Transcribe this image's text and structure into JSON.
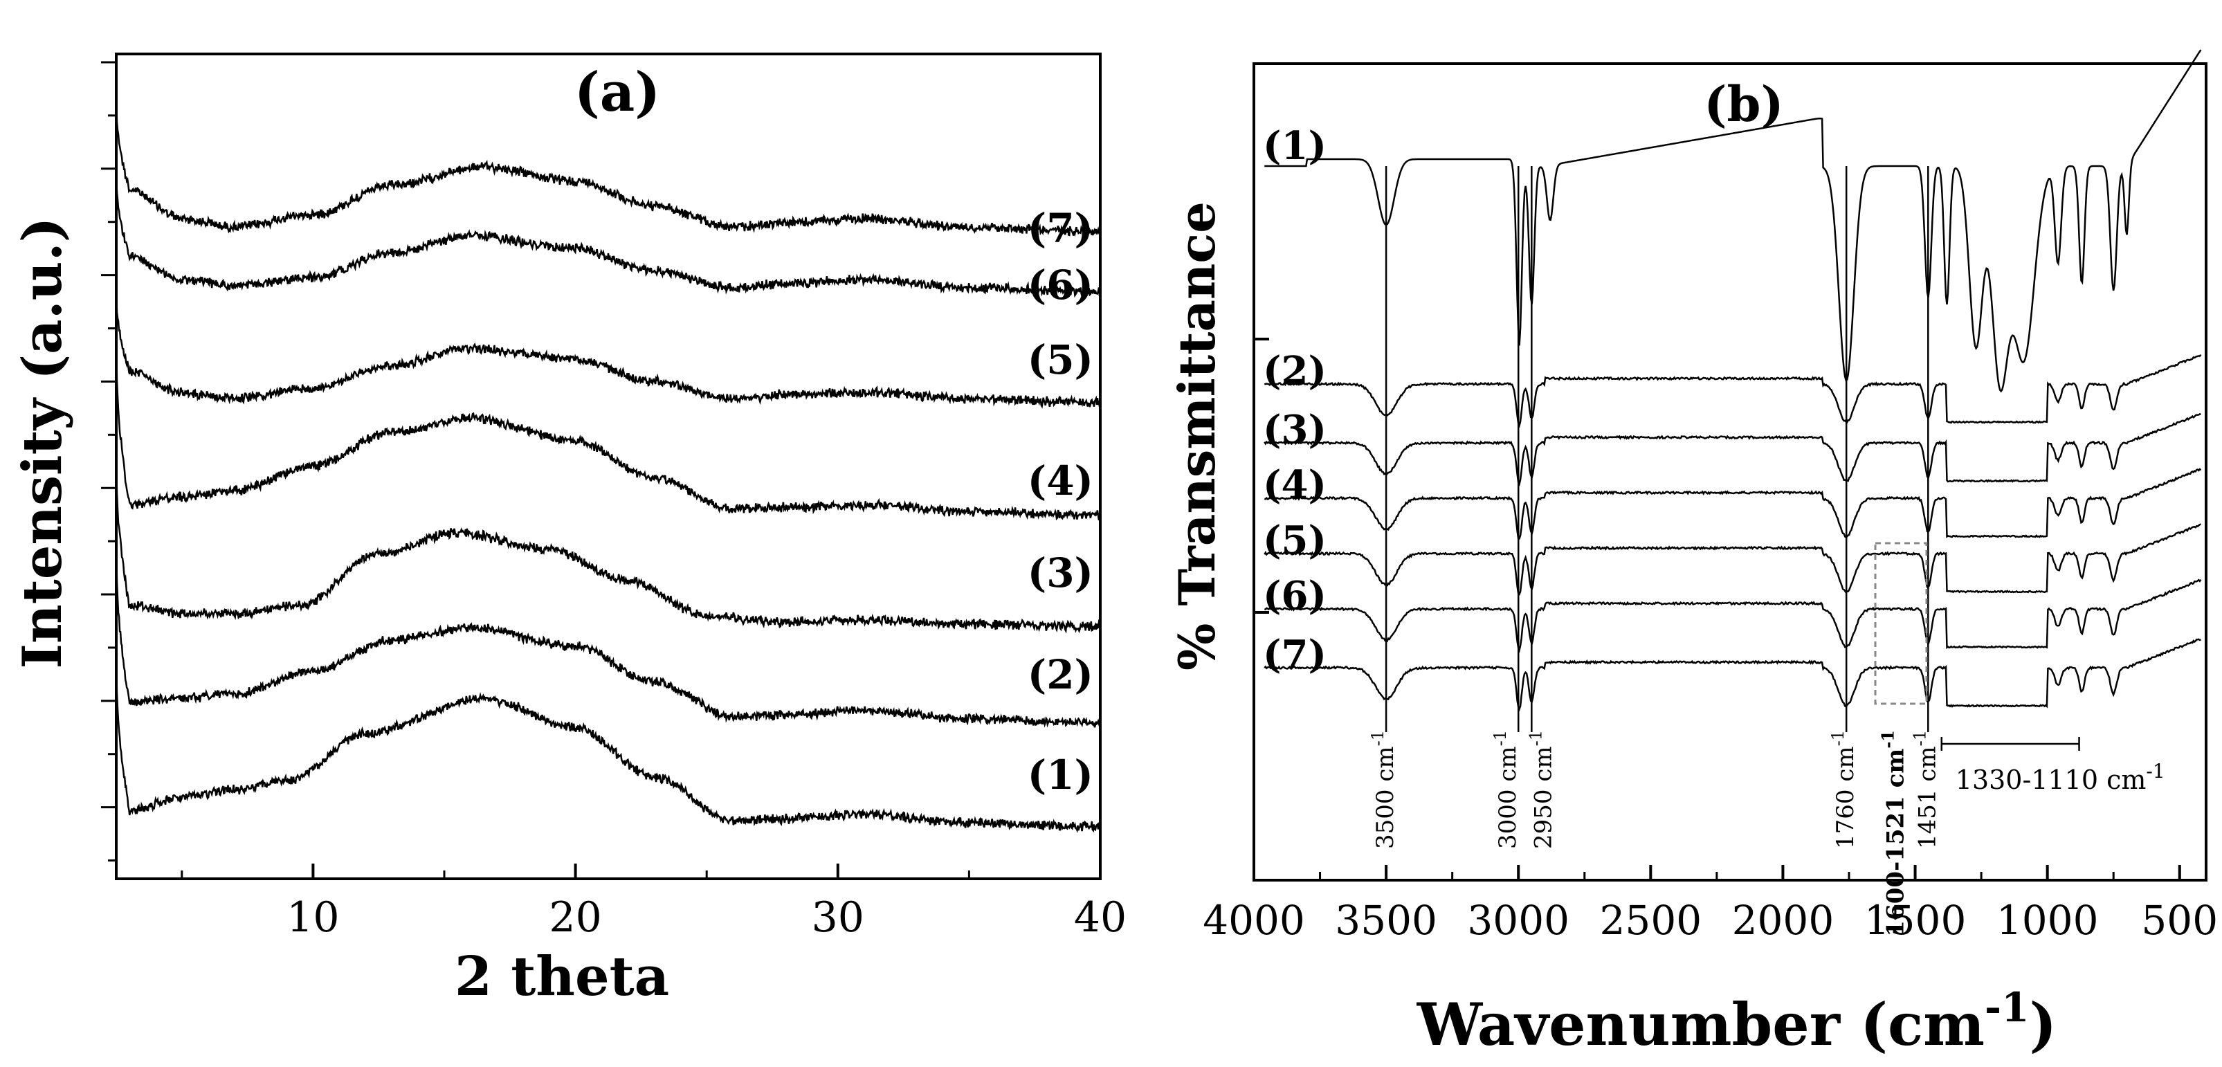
{
  "chart_data": [
    {
      "type": "line",
      "panel_label": "(a)",
      "title": "",
      "xlabel": "2 theta",
      "ylabel": "Intensity (a.u.)",
      "xlim": [
        2.5,
        40
      ],
      "xticks": [
        10,
        20,
        30,
        40
      ],
      "grid": false,
      "series": [
        {
          "name": "(7)",
          "label": "(7)",
          "points": [
            [
              2.5,
              0.66
            ],
            [
              3,
              0.22
            ],
            [
              5,
              0.08
            ],
            [
              7,
              0.04
            ],
            [
              10,
              0.1
            ],
            [
              13,
              0.24
            ],
            [
              16.5,
              0.33
            ],
            [
              20,
              0.26
            ],
            [
              23,
              0.14
            ],
            [
              26,
              0.04
            ],
            [
              28,
              0.06
            ],
            [
              31,
              0.08
            ],
            [
              35,
              0.04
            ],
            [
              40,
              0.02
            ]
          ]
        },
        {
          "name": "(6)",
          "label": "(6)",
          "points": [
            [
              2.5,
              0.58
            ],
            [
              3,
              0.18
            ],
            [
              5,
              0.07
            ],
            [
              7,
              0.04
            ],
            [
              10,
              0.08
            ],
            [
              13,
              0.2
            ],
            [
              16,
              0.28
            ],
            [
              20,
              0.22
            ],
            [
              23,
              0.11
            ],
            [
              26,
              0.03
            ],
            [
              28,
              0.05
            ],
            [
              31,
              0.07
            ],
            [
              35,
              0.03
            ],
            [
              40,
              0.01
            ]
          ]
        },
        {
          "name": "(5)",
          "label": "(5)",
          "points": [
            [
              2.5,
              0.55
            ],
            [
              3,
              0.16
            ],
            [
              5,
              0.06
            ],
            [
              7,
              0.03
            ],
            [
              10,
              0.08
            ],
            [
              13,
              0.19
            ],
            [
              16,
              0.27
            ],
            [
              20,
              0.22
            ],
            [
              23,
              0.11
            ],
            [
              26,
              0.03
            ],
            [
              28,
              0.05
            ],
            [
              31,
              0.06
            ],
            [
              35,
              0.03
            ],
            [
              40,
              0.01
            ]
          ]
        },
        {
          "name": "(4)",
          "label": "(4)",
          "points": [
            [
              2.5,
              0.82
            ],
            [
              3,
              0.05
            ],
            [
              5,
              0.09
            ],
            [
              7,
              0.12
            ],
            [
              10,
              0.24
            ],
            [
              13,
              0.4
            ],
            [
              16,
              0.47
            ],
            [
              20,
              0.36
            ],
            [
              23,
              0.18
            ],
            [
              26,
              0.03
            ],
            [
              28,
              0.04
            ],
            [
              31,
              0.05
            ],
            [
              35,
              0.02
            ],
            [
              40,
              0.0
            ]
          ]
        },
        {
          "name": "(3)",
          "label": "(3)",
          "points": [
            [
              2.5,
              0.8
            ],
            [
              3,
              0.1
            ],
            [
              5,
              0.06
            ],
            [
              7,
              0.06
            ],
            [
              9.5,
              0.1
            ],
            [
              12.5,
              0.35
            ],
            [
              15.5,
              0.45
            ],
            [
              19,
              0.37
            ],
            [
              22,
              0.22
            ],
            [
              25,
              0.05
            ],
            [
              28,
              0.02
            ],
            [
              31,
              0.03
            ],
            [
              35,
              0.01
            ],
            [
              40,
              0.0
            ]
          ]
        },
        {
          "name": "(2)",
          "label": "(2)",
          "points": [
            [
              2.5,
              0.85
            ],
            [
              3,
              0.1
            ],
            [
              5,
              0.12
            ],
            [
              7,
              0.14
            ],
            [
              10,
              0.25
            ],
            [
              13,
              0.4
            ],
            [
              16,
              0.46
            ],
            [
              20,
              0.37
            ],
            [
              23,
              0.2
            ],
            [
              26,
              0.03
            ],
            [
              28,
              0.04
            ],
            [
              31,
              0.06
            ],
            [
              35,
              0.02
            ],
            [
              40,
              0.0
            ]
          ]
        },
        {
          "name": "(1)",
          "label": "(1)",
          "points": [
            [
              2.5,
              0.8
            ],
            [
              3,
              0.08
            ],
            [
              5,
              0.14
            ],
            [
              7,
              0.18
            ],
            [
              9,
              0.22
            ],
            [
              12,
              0.45
            ],
            [
              16.5,
              0.62
            ],
            [
              20,
              0.48
            ],
            [
              23,
              0.24
            ],
            [
              26,
              0.03
            ],
            [
              28,
              0.04
            ],
            [
              31,
              0.06
            ],
            [
              35,
              0.02
            ],
            [
              40,
              0.0
            ]
          ]
        }
      ]
    },
    {
      "type": "line",
      "panel_label": "(b)",
      "title": "",
      "xlabel_main": "Wavenumber (cm",
      "xlabel_sup": "-1",
      "xlabel_close": ")",
      "ylabel": "% Transmittance",
      "xlim": [
        4000,
        400
      ],
      "xticks": [
        4000,
        3500,
        3000,
        2500,
        2000,
        1500,
        1000,
        500
      ],
      "grid": false,
      "series": [
        {
          "name": "(1)",
          "label": "(1)"
        },
        {
          "name": "(2)",
          "label": "(2)"
        },
        {
          "name": "(3)",
          "label": "(3)"
        },
        {
          "name": "(4)",
          "label": "(4)"
        },
        {
          "name": "(5)",
          "label": "(5)"
        },
        {
          "name": "(6)",
          "label": "(6)"
        },
        {
          "name": "(7)",
          "label": "(7)"
        }
      ],
      "band_lines": [
        3500,
        3000,
        2950,
        1760,
        1451
      ],
      "bands": [
        {
          "text": "3500 cm",
          "wn": 3500
        },
        {
          "text": "3000 cm",
          "wn": 3000
        },
        {
          "text": "2950 cm",
          "wn": 2950
        },
        {
          "text": "1760 cm",
          "wn": 1760
        },
        {
          "text": "1600-1521 cm",
          "wn": 1560,
          "color": "#888888"
        },
        {
          "text": "1451 cm",
          "wn": 1451
        }
      ],
      "band_range": {
        "text": "1330-1110 cm",
        "from": 1400,
        "to": 880
      },
      "band_sup": "-1"
    }
  ]
}
